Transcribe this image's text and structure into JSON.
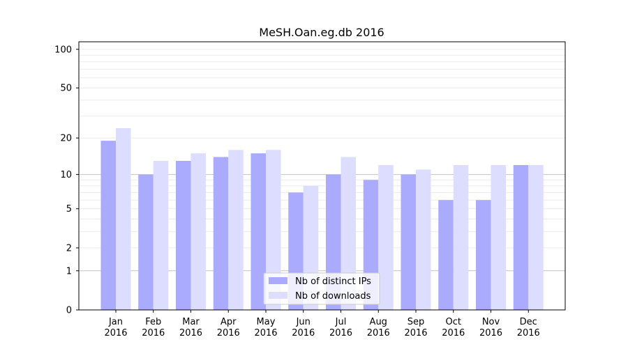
{
  "chart_data": {
    "type": "bar",
    "title": "MeSH.Oan.eg.db 2016",
    "xlabel": "",
    "ylabel": "",
    "yscale": "log(1+y)",
    "ylim": [
      0,
      114
    ],
    "yticks": [
      0,
      1,
      2,
      5,
      10,
      20,
      50,
      100
    ],
    "grid": true,
    "legend_position": "bottom-center",
    "categories": [
      "Jan\n2016",
      "Feb\n2016",
      "Mar\n2016",
      "Apr\n2016",
      "May\n2016",
      "Jun\n2016",
      "Jul\n2016",
      "Aug\n2016",
      "Sep\n2016",
      "Oct\n2016",
      "Nov\n2016",
      "Dec\n2016"
    ],
    "series": [
      {
        "name": "Nb of distinct IPs",
        "color": "#aaaaff",
        "values": [
          19,
          10,
          13,
          14,
          15,
          7,
          10,
          9,
          10,
          6,
          6,
          12
        ]
      },
      {
        "name": "Nb of downloads",
        "color": "#ddddff",
        "values": [
          24,
          13,
          15,
          16,
          16,
          8,
          14,
          12,
          11,
          12,
          12,
          12
        ]
      }
    ]
  }
}
